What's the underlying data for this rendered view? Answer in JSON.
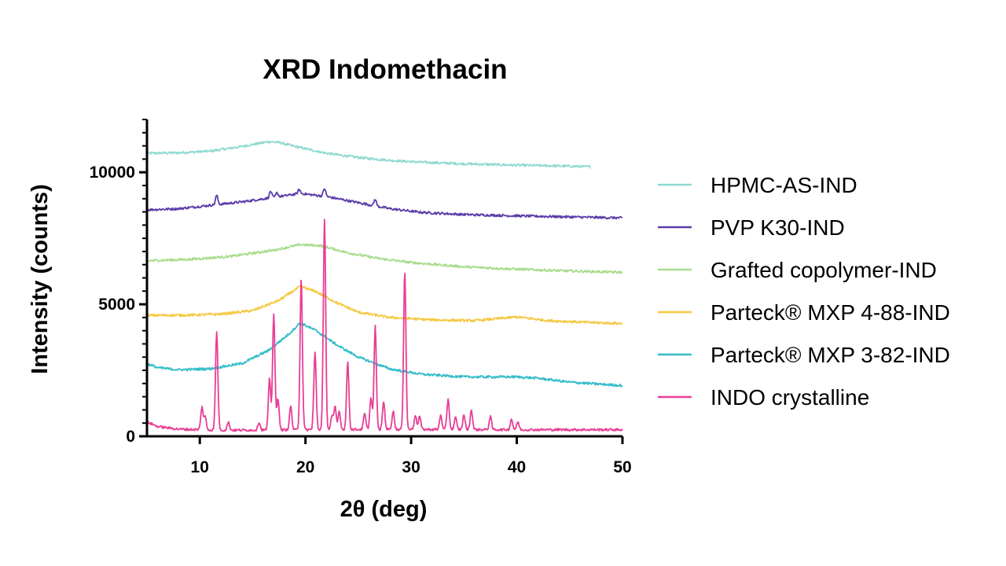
{
  "chart_data": {
    "type": "line",
    "title": "XRD Indomethacin",
    "xlabel": "2θ (deg)",
    "ylabel": "Intensity (counts)",
    "xlim": [
      5,
      50
    ],
    "ylim": [
      0,
      12000
    ],
    "x_ticks": [
      {
        "value": 10,
        "label": "10"
      },
      {
        "value": 20,
        "label": "20"
      },
      {
        "value": 30,
        "label": "30"
      },
      {
        "value": 40,
        "label": "40"
      },
      {
        "value": 50,
        "label": "50"
      }
    ],
    "y_ticks": [
      {
        "value": 0,
        "label": "0"
      },
      {
        "value": 5000,
        "label": "5000"
      },
      {
        "value": 10000,
        "label": "10000"
      }
    ],
    "y_minor_step": 500,
    "grid": false,
    "legend_position": "right",
    "series": [
      {
        "name": "HPMC-AS-IND",
        "color": "#8fd9d2",
        "x_end": 47,
        "points": [
          [
            5,
            10720
          ],
          [
            8,
            10740
          ],
          [
            11,
            10800
          ],
          [
            14,
            10980
          ],
          [
            16.5,
            11160
          ],
          [
            17.5,
            11130
          ],
          [
            19,
            10980
          ],
          [
            22,
            10720
          ],
          [
            25,
            10560
          ],
          [
            28,
            10450
          ],
          [
            31,
            10380
          ],
          [
            35,
            10320
          ],
          [
            40,
            10270
          ],
          [
            44,
            10240
          ],
          [
            47,
            10210
          ]
        ],
        "peaks": []
      },
      {
        "name": "PVP K30-IND",
        "color": "#5b3ca8",
        "x_end": 50,
        "points": [
          [
            5,
            8580
          ],
          [
            8,
            8620
          ],
          [
            11,
            8750
          ],
          [
            14,
            8880
          ],
          [
            17,
            9050
          ],
          [
            19.5,
            9200
          ],
          [
            22,
            9080
          ],
          [
            25,
            8850
          ],
          [
            28,
            8620
          ],
          [
            31,
            8480
          ],
          [
            35,
            8400
          ],
          [
            40,
            8350
          ],
          [
            45,
            8310
          ],
          [
            50,
            8270
          ]
        ],
        "peaks": [
          [
            11.6,
            350
          ],
          [
            16.7,
            250
          ],
          [
            17.3,
            150
          ],
          [
            19.4,
            150
          ],
          [
            21.8,
            300
          ],
          [
            26.6,
            250
          ]
        ]
      },
      {
        "name": "Grafted copolymer-IND",
        "color": "#a8dc8c",
        "x_end": 50,
        "points": [
          [
            5,
            6650
          ],
          [
            9,
            6700
          ],
          [
            13,
            6820
          ],
          [
            17,
            7050
          ],
          [
            19.5,
            7260
          ],
          [
            21.5,
            7220
          ],
          [
            24,
            6950
          ],
          [
            27,
            6730
          ],
          [
            30,
            6580
          ],
          [
            35,
            6420
          ],
          [
            40,
            6330
          ],
          [
            45,
            6260
          ],
          [
            50,
            6210
          ]
        ],
        "peaks": []
      },
      {
        "name": "Parteck® MXP 4-88-IND",
        "color": "#f5c842",
        "x_end": 50,
        "points": [
          [
            5,
            4580
          ],
          [
            9,
            4590
          ],
          [
            12,
            4630
          ],
          [
            15,
            4760
          ],
          [
            17.5,
            5150
          ],
          [
            19.5,
            5680
          ],
          [
            21,
            5480
          ],
          [
            23,
            5050
          ],
          [
            25,
            4700
          ],
          [
            28,
            4500
          ],
          [
            32,
            4410
          ],
          [
            36,
            4380
          ],
          [
            40,
            4520
          ],
          [
            43,
            4380
          ],
          [
            47,
            4310
          ],
          [
            50,
            4270
          ]
        ],
        "peaks": []
      },
      {
        "name": "Parteck® MXP 3-82-IND",
        "color": "#33bcc9",
        "x_end": 50,
        "points": [
          [
            5,
            2750
          ],
          [
            6,
            2600
          ],
          [
            8,
            2520
          ],
          [
            11,
            2560
          ],
          [
            14,
            2760
          ],
          [
            16.5,
            3250
          ],
          [
            18.5,
            3900
          ],
          [
            19.5,
            4300
          ],
          [
            21,
            4000
          ],
          [
            23,
            3450
          ],
          [
            25,
            3000
          ],
          [
            28,
            2550
          ],
          [
            31,
            2350
          ],
          [
            35,
            2250
          ],
          [
            40,
            2250
          ],
          [
            42,
            2200
          ],
          [
            45,
            2050
          ],
          [
            50,
            1920
          ]
        ],
        "peaks": []
      },
      {
        "name": "INDO crystalline",
        "color": "#e83e96",
        "x_end": 50,
        "points": [
          [
            5,
            550
          ],
          [
            6,
            370
          ],
          [
            8,
            270
          ],
          [
            12,
            230
          ],
          [
            18,
            240
          ],
          [
            25,
            260
          ],
          [
            30,
            260
          ],
          [
            40,
            250
          ],
          [
            50,
            250
          ]
        ],
        "peaks": [
          [
            10.2,
            850
          ],
          [
            10.5,
            500
          ],
          [
            11.6,
            3750
          ],
          [
            12.7,
            300
          ],
          [
            15.6,
            300
          ],
          [
            16.6,
            1950
          ],
          [
            17.0,
            4400
          ],
          [
            17.4,
            1200
          ],
          [
            18.6,
            900
          ],
          [
            19.6,
            5750
          ],
          [
            20.9,
            2950
          ],
          [
            21.8,
            7950
          ],
          [
            22.5,
            500
          ],
          [
            22.8,
            850
          ],
          [
            23.2,
            700
          ],
          [
            24.0,
            2550
          ],
          [
            25.6,
            600
          ],
          [
            26.2,
            1200
          ],
          [
            26.6,
            3900
          ],
          [
            27.4,
            1050
          ],
          [
            28.3,
            700
          ],
          [
            29.4,
            6050
          ],
          [
            30.4,
            550
          ],
          [
            30.8,
            500
          ],
          [
            32.8,
            550
          ],
          [
            33.5,
            1150
          ],
          [
            34.2,
            450
          ],
          [
            35.0,
            550
          ],
          [
            35.7,
            750
          ],
          [
            37.5,
            500
          ],
          [
            39.5,
            400
          ],
          [
            40.1,
            300
          ]
        ]
      }
    ]
  }
}
